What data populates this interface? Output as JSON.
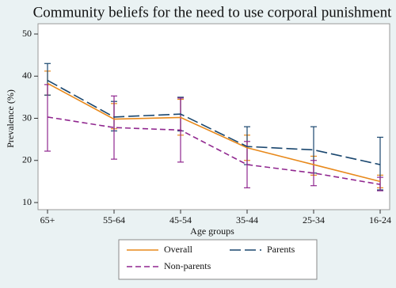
{
  "chart_data": {
    "type": "line",
    "title": "Community beliefs for the need to use corporal punishment",
    "x_label": "Age groups",
    "y_label": "Prevalence (%)",
    "categories": [
      "65+",
      "55-64",
      "45-54",
      "35-44",
      "25-34",
      "16-24"
    ],
    "series": [
      {
        "name": "Overall",
        "color": "#e8891b",
        "dash": "none",
        "values": [
          38.3,
          29.8,
          30.2,
          23,
          19,
          15
        ],
        "lower": [
          35.5,
          27.5,
          26,
          20,
          16.5,
          13.5
        ],
        "upper": [
          41.2,
          33.5,
          34.5,
          26,
          21,
          16.5
        ]
      },
      {
        "name": "Parents",
        "color": "#1a476f",
        "dash": "14 5",
        "values": [
          39,
          30.3,
          31,
          23.3,
          22.5,
          19
        ],
        "lower": [
          35.5,
          27,
          27,
          19,
          17,
          13
        ],
        "upper": [
          43,
          34,
          35,
          28,
          28,
          25.5
        ]
      },
      {
        "name": "Non-parents",
        "color": "#90278f",
        "dash": "7 4",
        "values": [
          30.3,
          27.8,
          27.2,
          19,
          17,
          14.3
        ],
        "lower": [
          22.2,
          20.3,
          19.6,
          13.5,
          14,
          12.8
        ],
        "upper": [
          38,
          35.3,
          34.8,
          24.5,
          20,
          16
        ]
      }
    ],
    "ylim": [
      10,
      50
    ],
    "yticks": [
      10,
      20,
      30,
      40,
      50
    ],
    "grid": false
  }
}
